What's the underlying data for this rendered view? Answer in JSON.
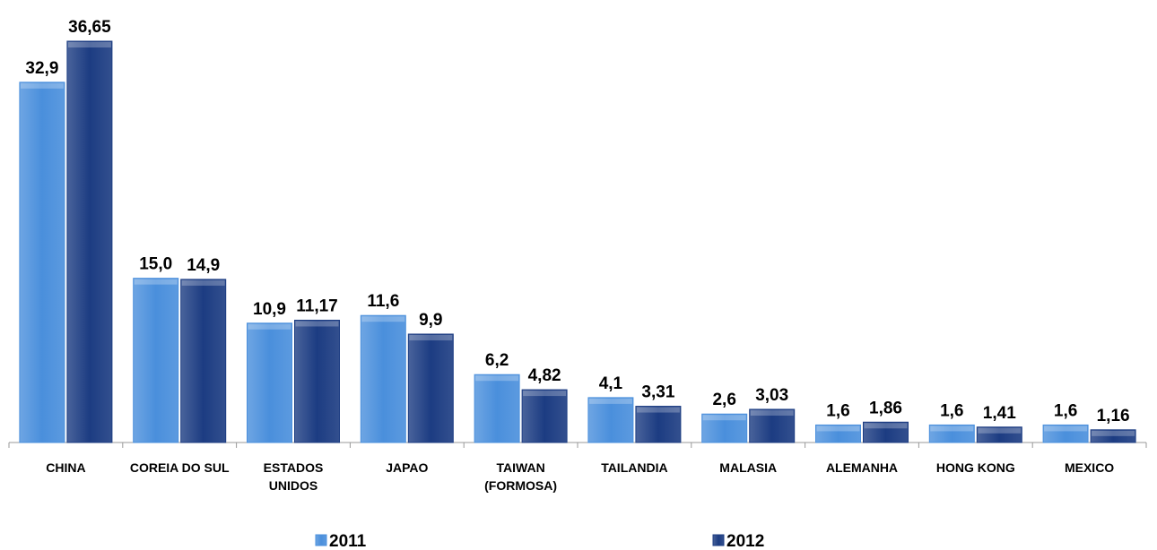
{
  "chart_data": {
    "type": "bar",
    "categories": [
      "CHINA",
      "COREIA DO SUL",
      "ESTADOS UNIDOS",
      "JAPAO",
      "TAIWAN (FORMOSA)",
      "TAILANDIA",
      "MALASIA",
      "ALEMANHA",
      "HONG KONG",
      "MEXICO"
    ],
    "series": [
      {
        "name": "2011",
        "color": "#4a8fdc",
        "values": [
          32.9,
          15.0,
          10.9,
          11.6,
          6.2,
          4.1,
          2.6,
          1.6,
          1.6,
          1.6
        ],
        "value_labels": [
          "32,9",
          "15,0",
          "10,9",
          "11,6",
          "6,2",
          "4,1",
          "2,6",
          "1,6",
          "1,6",
          "1,6"
        ]
      },
      {
        "name": "2012",
        "color": "#1c3c82",
        "values": [
          36.65,
          14.9,
          11.17,
          9.9,
          4.82,
          3.31,
          3.03,
          1.86,
          1.41,
          1.16
        ],
        "value_labels": [
          "36,65",
          "14,9",
          "11,17",
          "9,9",
          "4,82",
          "3,31",
          "3,03",
          "1,86",
          "1,41",
          "1,16"
        ]
      }
    ],
    "legend": "bottom"
  }
}
